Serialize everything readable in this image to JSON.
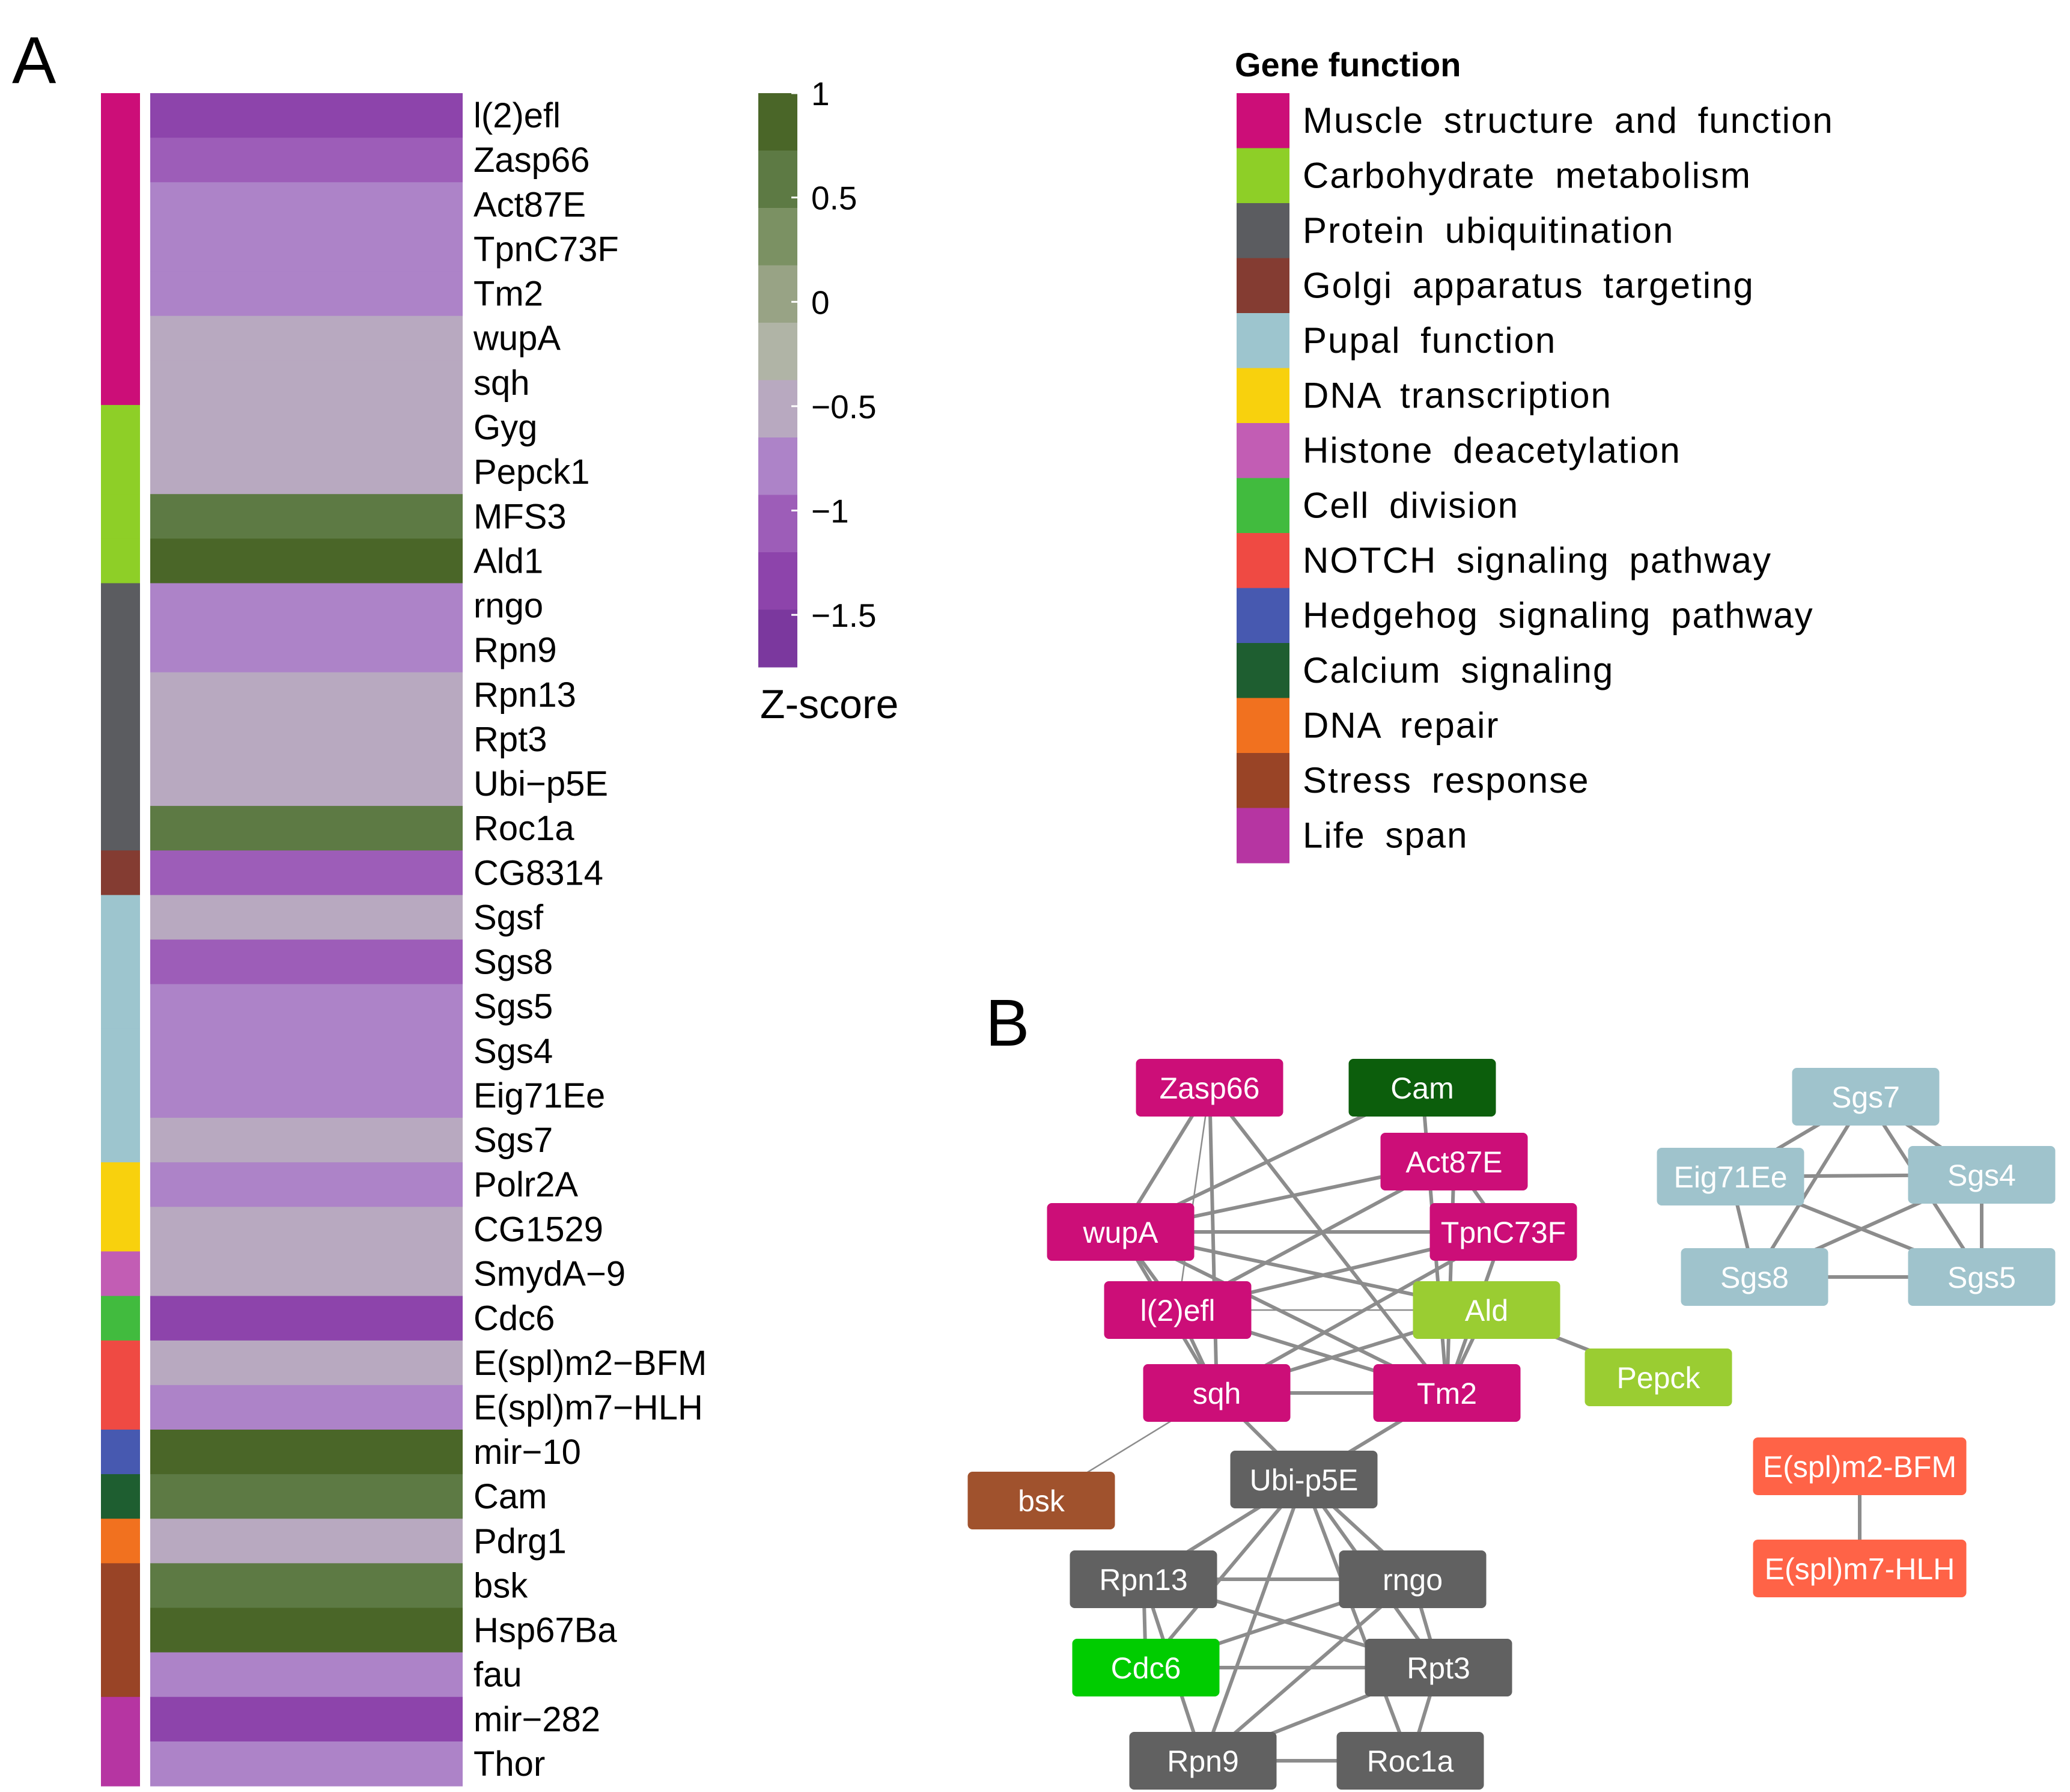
{
  "panel_a": {
    "letter": "A",
    "rows": [
      {
        "gene": "l(2)efl",
        "z": -1.35,
        "function": "muscle"
      },
      {
        "gene": "Zasp66",
        "z": -1.0,
        "function": "muscle"
      },
      {
        "gene": "Act87E",
        "z": -0.8,
        "function": "muscle"
      },
      {
        "gene": "TpnC73F",
        "z": -0.8,
        "function": "muscle"
      },
      {
        "gene": "Tm2",
        "z": -0.8,
        "function": "muscle"
      },
      {
        "gene": "wupA",
        "z": -0.45,
        "function": "muscle"
      },
      {
        "gene": "sqh",
        "z": -0.45,
        "function": "muscle"
      },
      {
        "gene": "Gyg",
        "z": -0.45,
        "function": "carbohydrate"
      },
      {
        "gene": "Pepck1",
        "z": -0.45,
        "function": "carbohydrate"
      },
      {
        "gene": "MFS3",
        "z": 0.7,
        "function": "carbohydrate"
      },
      {
        "gene": "Ald1",
        "z": 0.95,
        "function": "carbohydrate"
      },
      {
        "gene": "rngo",
        "z": -0.8,
        "function": "ubiquitination"
      },
      {
        "gene": "Rpn9",
        "z": -0.8,
        "function": "ubiquitination"
      },
      {
        "gene": "Rpn13",
        "z": -0.45,
        "function": "ubiquitination"
      },
      {
        "gene": "Rpt3",
        "z": -0.45,
        "function": "ubiquitination"
      },
      {
        "gene": "Ubi−p5E",
        "z": -0.45,
        "function": "ubiquitination"
      },
      {
        "gene": "Roc1a",
        "z": 0.7,
        "function": "ubiquitination"
      },
      {
        "gene": "CG8314",
        "z": -1.0,
        "function": "golgi"
      },
      {
        "gene": "Sgsf",
        "z": -0.45,
        "function": "pupal"
      },
      {
        "gene": "Sgs8",
        "z": -1.0,
        "function": "pupal"
      },
      {
        "gene": "Sgs5",
        "z": -0.8,
        "function": "pupal"
      },
      {
        "gene": "Sgs4",
        "z": -0.8,
        "function": "pupal"
      },
      {
        "gene": "Eig71Ee",
        "z": -0.8,
        "function": "pupal"
      },
      {
        "gene": "Sgs7",
        "z": -0.45,
        "function": "pupal"
      },
      {
        "gene": "Polr2A",
        "z": -0.8,
        "function": "transcription"
      },
      {
        "gene": "CG1529",
        "z": -0.45,
        "function": "transcription"
      },
      {
        "gene": "SmydA−9",
        "z": -0.45,
        "function": "histone"
      },
      {
        "gene": "Cdc6",
        "z": -1.25,
        "function": "division"
      },
      {
        "gene": "E(spl)m2−BFM",
        "z": -0.45,
        "function": "notch"
      },
      {
        "gene": "E(spl)m7−HLH",
        "z": -0.8,
        "function": "notch"
      },
      {
        "gene": "mir−10",
        "z": 0.95,
        "function": "hedgehog"
      },
      {
        "gene": "Cam",
        "z": 0.7,
        "function": "calcium"
      },
      {
        "gene": "Pdrg1",
        "z": -0.45,
        "function": "repair"
      },
      {
        "gene": "bsk",
        "z": 0.7,
        "function": "stress"
      },
      {
        "gene": "Hsp67Ba",
        "z": 0.95,
        "function": "stress"
      },
      {
        "gene": "fau",
        "z": -0.8,
        "function": "stress"
      },
      {
        "gene": "mir−282",
        "z": -1.35,
        "function": "lifespan"
      },
      {
        "gene": "Thor",
        "z": -0.8,
        "function": "lifespan"
      }
    ],
    "colorbar": {
      "title": "Z-score",
      "ticks": [
        {
          "value": 1,
          "label": "1"
        },
        {
          "value": 0.5,
          "label": "0.5"
        },
        {
          "value": 0,
          "label": "0"
        },
        {
          "value": -0.5,
          "label": "−0.5"
        },
        {
          "value": -1,
          "label": "−1"
        },
        {
          "value": -1.5,
          "label": "−1.5"
        }
      ],
      "range": [
        -1.75,
        1.0
      ],
      "colors": [
        "#4a6628",
        "#5d7a44",
        "#7b9163",
        "#98a385",
        "#b0b4a6",
        "#b8a9c0",
        "#ad83c8",
        "#9d5db8",
        "#8d44ab",
        "#7b389e"
      ]
    },
    "legend": {
      "title": "Gene function",
      "items": [
        {
          "key": "muscle",
          "label": "Muscle structure and function",
          "color": "#cc0e78"
        },
        {
          "key": "carbohydrate",
          "label": "Carbohydrate metabolism",
          "color": "#8ecf27"
        },
        {
          "key": "ubiquitination",
          "label": "Protein ubiquitination",
          "color": "#5b5c60"
        },
        {
          "key": "golgi",
          "label": "Golgi apparatus targeting",
          "color": "#843c32"
        },
        {
          "key": "pupal",
          "label": "Pupal function",
          "color": "#9dc5ce"
        },
        {
          "key": "transcription",
          "label": "DNA transcription",
          "color": "#f8d10d"
        },
        {
          "key": "histone",
          "label": "Histone deacetylation",
          "color": "#c25db4"
        },
        {
          "key": "division",
          "label": "Cell division",
          "color": "#41bb3e"
        },
        {
          "key": "notch",
          "label": "NOTCH signaling pathway",
          "color": "#ef4a43"
        },
        {
          "key": "hedgehog",
          "label": "Hedgehog signaling pathway",
          "color": "#4759b0"
        },
        {
          "key": "calcium",
          "label": "Calcium signaling",
          "color": "#1e5e30"
        },
        {
          "key": "repair",
          "label": "DNA repair",
          "color": "#f1711f"
        },
        {
          "key": "stress",
          "label": "Stress response",
          "color": "#994426"
        },
        {
          "key": "lifespan",
          "label": "Life span",
          "color": "#b635a2"
        }
      ]
    }
  },
  "panel_b": {
    "letter": "B",
    "colors": {
      "muscle": "#cc0e78",
      "calcium": "#0c5e0c",
      "carbohydrate": "#9acd32",
      "ubiquitination": "#616161",
      "division": "#00cc00",
      "stress": "#a0522d",
      "pupal": "#9fc3cc",
      "notch": "#ff6347"
    },
    "nodes": [
      {
        "id": "zasp66",
        "label": "Zasp66",
        "group": "muscle"
      },
      {
        "id": "cam",
        "label": "Cam",
        "group": "calcium"
      },
      {
        "id": "act87e",
        "label": "Act87E",
        "group": "muscle"
      },
      {
        "id": "wupa",
        "label": "wupA",
        "group": "muscle"
      },
      {
        "id": "tpnc73f",
        "label": "TpnC73F",
        "group": "muscle"
      },
      {
        "id": "l2efl",
        "label": "l(2)efl",
        "group": "muscle"
      },
      {
        "id": "ald",
        "label": "Ald",
        "group": "carbohydrate"
      },
      {
        "id": "pepck",
        "label": "Pepck",
        "group": "carbohydrate"
      },
      {
        "id": "sqh",
        "label": "sqh",
        "group": "muscle"
      },
      {
        "id": "tm2",
        "label": "Tm2",
        "group": "muscle"
      },
      {
        "id": "bsk",
        "label": "bsk",
        "group": "stress"
      },
      {
        "id": "ubip5e",
        "label": "Ubi-p5E",
        "group": "ubiquitination"
      },
      {
        "id": "rpn13",
        "label": "Rpn13",
        "group": "ubiquitination"
      },
      {
        "id": "rngo",
        "label": "rngo",
        "group": "ubiquitination"
      },
      {
        "id": "cdc6",
        "label": "Cdc6",
        "group": "division"
      },
      {
        "id": "rpt3",
        "label": "Rpt3",
        "group": "ubiquitination"
      },
      {
        "id": "rpn9",
        "label": "Rpn9",
        "group": "ubiquitination"
      },
      {
        "id": "roc1a",
        "label": "Roc1a",
        "group": "ubiquitination"
      },
      {
        "id": "sgs7",
        "label": "Sgs7",
        "group": "pupal"
      },
      {
        "id": "eig71ee",
        "label": "Eig71Ee",
        "group": "pupal"
      },
      {
        "id": "sgs4",
        "label": "Sgs4",
        "group": "pupal"
      },
      {
        "id": "sgs8",
        "label": "Sgs8",
        "group": "pupal"
      },
      {
        "id": "sgs5",
        "label": "Sgs5",
        "group": "pupal"
      },
      {
        "id": "esplm2",
        "label": "E(spl)m2-BFM",
        "group": "notch"
      },
      {
        "id": "esplm7",
        "label": "E(spl)m7-HLH",
        "group": "notch"
      }
    ],
    "edges": [
      [
        "zasp66",
        "wupa"
      ],
      [
        "zasp66",
        "l2efl",
        "thin"
      ],
      [
        "zasp66",
        "tm2"
      ],
      [
        "zasp66",
        "sqh"
      ],
      [
        "cam",
        "wupa"
      ],
      [
        "cam",
        "tm2"
      ],
      [
        "act87e",
        "wupa"
      ],
      [
        "act87e",
        "l2efl"
      ],
      [
        "act87e",
        "tpnc73f"
      ],
      [
        "act87e",
        "tm2"
      ],
      [
        "wupa",
        "tpnc73f"
      ],
      [
        "wupa",
        "ald"
      ],
      [
        "wupa",
        "tm2"
      ],
      [
        "wupa",
        "sqh"
      ],
      [
        "wupa",
        "l2efl"
      ],
      [
        "tpnc73f",
        "l2efl"
      ],
      [
        "tpnc73f",
        "sqh"
      ],
      [
        "tpnc73f",
        "tm2"
      ],
      [
        "l2efl",
        "ald",
        "thin"
      ],
      [
        "l2efl",
        "tm2"
      ],
      [
        "l2efl",
        "sqh"
      ],
      [
        "ald",
        "pepck"
      ],
      [
        "ald",
        "tm2"
      ],
      [
        "ald",
        "sqh"
      ],
      [
        "sqh",
        "tm2"
      ],
      [
        "sqh",
        "bsk",
        "thin"
      ],
      [
        "sqh",
        "ubip5e"
      ],
      [
        "tm2",
        "ubip5e"
      ],
      [
        "ubip5e",
        "rpn13"
      ],
      [
        "ubip5e",
        "rngo"
      ],
      [
        "ubip5e",
        "rpt3"
      ],
      [
        "ubip5e",
        "rpn9"
      ],
      [
        "ubip5e",
        "roc1a"
      ],
      [
        "ubip5e",
        "cdc6"
      ],
      [
        "rpn13",
        "rngo"
      ],
      [
        "rpn13",
        "rpt3"
      ],
      [
        "rpn13",
        "rpn9"
      ],
      [
        "rpn13",
        "cdc6"
      ],
      [
        "rngo",
        "rpt3"
      ],
      [
        "rngo",
        "rpn9"
      ],
      [
        "rngo",
        "cdc6"
      ],
      [
        "cdc6",
        "rpt3"
      ],
      [
        "rpt3",
        "rpn9"
      ],
      [
        "rpt3",
        "roc1a"
      ],
      [
        "rpn9",
        "roc1a"
      ],
      [
        "sgs7",
        "eig71ee"
      ],
      [
        "sgs7",
        "sgs4"
      ],
      [
        "sgs7",
        "sgs8"
      ],
      [
        "sgs7",
        "sgs5"
      ],
      [
        "eig71ee",
        "sgs4"
      ],
      [
        "eig71ee",
        "sgs8"
      ],
      [
        "eig71ee",
        "sgs5"
      ],
      [
        "sgs4",
        "sgs8"
      ],
      [
        "sgs4",
        "sgs5"
      ],
      [
        "sgs8",
        "sgs5"
      ],
      [
        "esplm2",
        "esplm7"
      ]
    ]
  }
}
